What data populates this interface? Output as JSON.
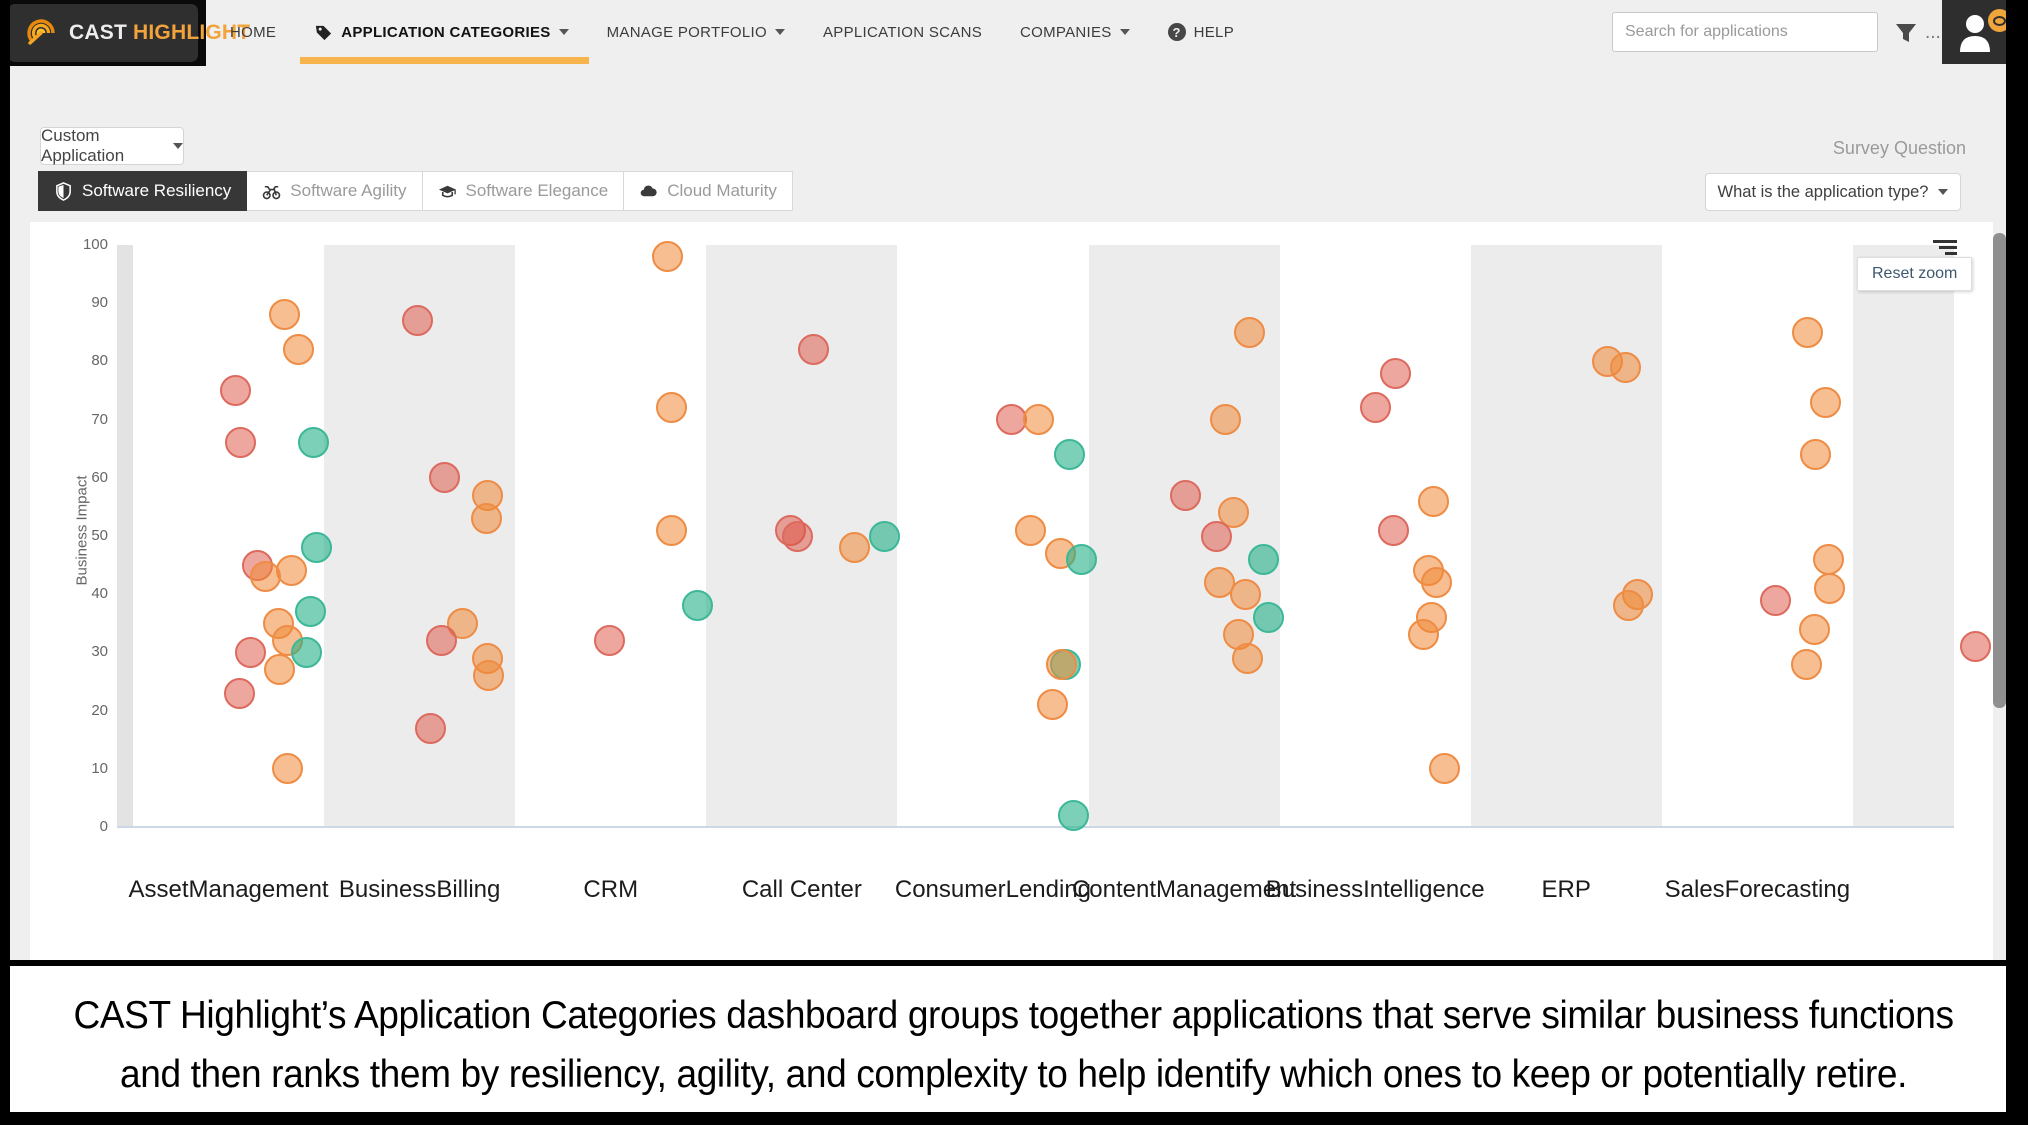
{
  "nav": {
    "logo": {
      "text_primary": "CAST",
      "text_secondary": "HIGHLIGHT"
    },
    "items": [
      {
        "label": "HOME",
        "icon": null,
        "caret": false,
        "active": false
      },
      {
        "label": "APPLICATION CATEGORIES",
        "icon": "tag",
        "caret": true,
        "active": true
      },
      {
        "label": "MANAGE PORTFOLIO",
        "icon": null,
        "caret": true,
        "active": false
      },
      {
        "label": "APPLICATION SCANS",
        "icon": null,
        "caret": false,
        "active": false
      },
      {
        "label": "COMPANIES",
        "icon": null,
        "caret": true,
        "active": false
      },
      {
        "label": "HELP",
        "icon": "question",
        "caret": false,
        "active": false
      }
    ],
    "search": {
      "placeholder": "Search for applications"
    },
    "filter_ellipsis": "..."
  },
  "filters": {
    "portfolio_button": "Custom Application",
    "survey_question_label": "Survey Question",
    "survey_question_button": "What is the application type?",
    "tabs": [
      {
        "label": "Software Resiliency",
        "icon": "shield",
        "active": true
      },
      {
        "label": "Software Agility",
        "icon": "motorcycle",
        "active": false
      },
      {
        "label": "Software Elegance",
        "icon": "graduation-cap",
        "active": false
      },
      {
        "label": "Cloud Maturity",
        "icon": "cloud",
        "active": false
      }
    ]
  },
  "chart_data": {
    "type": "scatter",
    "ylabel": "Business Impact",
    "ylim": [
      0,
      100
    ],
    "yticks": [
      0,
      10,
      20,
      30,
      40,
      50,
      60,
      70,
      80,
      90,
      100
    ],
    "reset_zoom_label": "Reset zoom",
    "legend": "none",
    "grid": false,
    "categories": [
      {
        "lines": [
          "Asset",
          "Management"
        ]
      },
      {
        "lines": [
          "Business",
          "Billing"
        ]
      },
      {
        "lines": [
          "CRM"
        ]
      },
      {
        "lines": [
          "Call Center"
        ]
      },
      {
        "lines": [
          "Consumer",
          "Lending"
        ]
      },
      {
        "lines": [
          "Content",
          "Management"
        ]
      },
      {
        "lines": [
          "Business",
          "Intelligence"
        ]
      },
      {
        "lines": [
          "ERP"
        ]
      },
      {
        "lines": [
          "Sales",
          "Forecasting"
        ]
      },
      {
        "lines": []
      }
    ],
    "series_colors": {
      "orange": {
        "fill": "rgba(240,137,54,0.55)",
        "stroke": "#ee8c45"
      },
      "red": {
        "fill": "rgba(222,80,63,0.5)",
        "stroke": "#dc6a5e"
      },
      "teal": {
        "fill": "rgba(36,177,135,0.6)",
        "stroke": "#3cb899"
      }
    },
    "points": [
      {
        "c": 0,
        "s": "orange",
        "v": 88,
        "dx": 56
      },
      {
        "c": 0,
        "s": "orange",
        "v": 82,
        "dx": 70
      },
      {
        "c": 0,
        "s": "red",
        "v": 75,
        "dx": 7
      },
      {
        "c": 0,
        "s": "red",
        "v": 66,
        "dx": 12
      },
      {
        "c": 0,
        "s": "teal",
        "v": 66,
        "dx": 85
      },
      {
        "c": 0,
        "s": "teal",
        "v": 48,
        "dx": 88
      },
      {
        "c": 0,
        "s": "red",
        "v": 45,
        "dx": 29
      },
      {
        "c": 0,
        "s": "orange",
        "v": 44,
        "dx": 63
      },
      {
        "c": 0,
        "s": "orange",
        "v": 43,
        "dx": 37
      },
      {
        "c": 0,
        "s": "teal",
        "v": 37,
        "dx": 82
      },
      {
        "c": 0,
        "s": "orange",
        "v": 35,
        "dx": 50
      },
      {
        "c": 0,
        "s": "orange",
        "v": 32,
        "dx": 59
      },
      {
        "c": 0,
        "s": "teal",
        "v": 30,
        "dx": 78
      },
      {
        "c": 0,
        "s": "red",
        "v": 30,
        "dx": 22
      },
      {
        "c": 0,
        "s": "orange",
        "v": 27,
        "dx": 51
      },
      {
        "c": 0,
        "s": "red",
        "v": 23,
        "dx": 11
      },
      {
        "c": 0,
        "s": "orange",
        "v": 10,
        "dx": 59
      },
      {
        "c": 1,
        "s": "red",
        "v": 87,
        "dx": -2
      },
      {
        "c": 1,
        "s": "red",
        "v": 60,
        "dx": 25
      },
      {
        "c": 1,
        "s": "orange",
        "v": 57,
        "dx": 68
      },
      {
        "c": 1,
        "s": "orange",
        "v": 53,
        "dx": 67
      },
      {
        "c": 1,
        "s": "orange",
        "v": 35,
        "dx": 43
      },
      {
        "c": 1,
        "s": "red",
        "v": 32,
        "dx": 22
      },
      {
        "c": 1,
        "s": "orange",
        "v": 29,
        "dx": 68
      },
      {
        "c": 1,
        "s": "orange",
        "v": 26,
        "dx": 69
      },
      {
        "c": 1,
        "s": "red",
        "v": 17,
        "dx": 11
      },
      {
        "c": 2,
        "s": "orange",
        "v": 98,
        "dx": 57
      },
      {
        "c": 2,
        "s": "orange",
        "v": 72,
        "dx": 61
      },
      {
        "c": 2,
        "s": "orange",
        "v": 51,
        "dx": 61
      },
      {
        "c": 2,
        "s": "teal",
        "v": 38,
        "dx": 87
      },
      {
        "c": 2,
        "s": "red",
        "v": 32,
        "dx": -1
      },
      {
        "c": 3,
        "s": "red",
        "v": 82,
        "dx": 12
      },
      {
        "c": 3,
        "s": "red",
        "v": 51,
        "dx": -11
      },
      {
        "c": 3,
        "s": "red",
        "v": 50,
        "dx": -4
      },
      {
        "c": 3,
        "s": "orange",
        "v": 48,
        "dx": 53
      },
      {
        "c": 3,
        "s": "teal",
        "v": 50,
        "dx": 83
      },
      {
        "c": 4,
        "s": "red",
        "v": 70,
        "dx": 19
      },
      {
        "c": 4,
        "s": "orange",
        "v": 70,
        "dx": 46
      },
      {
        "c": 4,
        "s": "teal",
        "v": 64,
        "dx": 77
      },
      {
        "c": 4,
        "s": "orange",
        "v": 51,
        "dx": 38
      },
      {
        "c": 4,
        "s": "orange",
        "v": 47,
        "dx": 68
      },
      {
        "c": 4,
        "s": "teal",
        "v": 46,
        "dx": 89
      },
      {
        "c": 4,
        "s": "teal",
        "v": 28,
        "dx": 73
      },
      {
        "c": 4,
        "s": "orange",
        "v": 28,
        "dx": 69
      },
      {
        "c": 4,
        "s": "orange",
        "v": 21,
        "dx": 60
      },
      {
        "c": 4,
        "s": "teal",
        "v": 2,
        "dx": 81
      },
      {
        "c": 5,
        "s": "orange",
        "v": 85,
        "dx": 65
      },
      {
        "c": 5,
        "s": "orange",
        "v": 70,
        "dx": 41
      },
      {
        "c": 5,
        "s": "red",
        "v": 57,
        "dx": 1
      },
      {
        "c": 5,
        "s": "orange",
        "v": 54,
        "dx": 49
      },
      {
        "c": 5,
        "s": "red",
        "v": 50,
        "dx": 32
      },
      {
        "c": 5,
        "s": "teal",
        "v": 46,
        "dx": 79
      },
      {
        "c": 5,
        "s": "orange",
        "v": 42,
        "dx": 35
      },
      {
        "c": 5,
        "s": "orange",
        "v": 40,
        "dx": 61
      },
      {
        "c": 5,
        "s": "teal",
        "v": 36,
        "dx": 84
      },
      {
        "c": 5,
        "s": "orange",
        "v": 33,
        "dx": 54
      },
      {
        "c": 5,
        "s": "orange",
        "v": 29,
        "dx": 63
      },
      {
        "c": 6,
        "s": "red",
        "v": 78,
        "dx": 20
      },
      {
        "c": 6,
        "s": "red",
        "v": 72,
        "dx": 0
      },
      {
        "c": 6,
        "s": "orange",
        "v": 56,
        "dx": 58
      },
      {
        "c": 6,
        "s": "red",
        "v": 51,
        "dx": 18
      },
      {
        "c": 6,
        "s": "orange",
        "v": 44,
        "dx": 53
      },
      {
        "c": 6,
        "s": "orange",
        "v": 42,
        "dx": 61
      },
      {
        "c": 6,
        "s": "orange",
        "v": 36,
        "dx": 56
      },
      {
        "c": 6,
        "s": "orange",
        "v": 33,
        "dx": 48
      },
      {
        "c": 6,
        "s": "orange",
        "v": 10,
        "dx": 69
      },
      {
        "c": 7,
        "s": "orange",
        "v": 80,
        "dx": 41
      },
      {
        "c": 7,
        "s": "orange",
        "v": 79,
        "dx": 59
      },
      {
        "c": 7,
        "s": "orange",
        "v": 40,
        "dx": 71
      },
      {
        "c": 7,
        "s": "orange",
        "v": 38,
        "dx": 62
      },
      {
        "c": 8,
        "s": "orange",
        "v": 85,
        "dx": 50
      },
      {
        "c": 8,
        "s": "orange",
        "v": 73,
        "dx": 68
      },
      {
        "c": 8,
        "s": "orange",
        "v": 64,
        "dx": 58
      },
      {
        "c": 8,
        "s": "orange",
        "v": 46,
        "dx": 71
      },
      {
        "c": 8,
        "s": "red",
        "v": 39,
        "dx": 18
      },
      {
        "c": 8,
        "s": "orange",
        "v": 41,
        "dx": 72
      },
      {
        "c": 8,
        "s": "orange",
        "v": 34,
        "dx": 57
      },
      {
        "c": 8,
        "s": "orange",
        "v": 28,
        "dx": 49
      },
      {
        "c": 9,
        "s": "red",
        "v": 31,
        "dx": 27
      }
    ]
  },
  "caption": {
    "line1": "CAST Highlight’s Application Categories dashboard groups together applications that serve similar business functions",
    "line2": "and then ranks them by resiliency, agility, and complexity to help identify which ones to keep or potentially retire."
  }
}
